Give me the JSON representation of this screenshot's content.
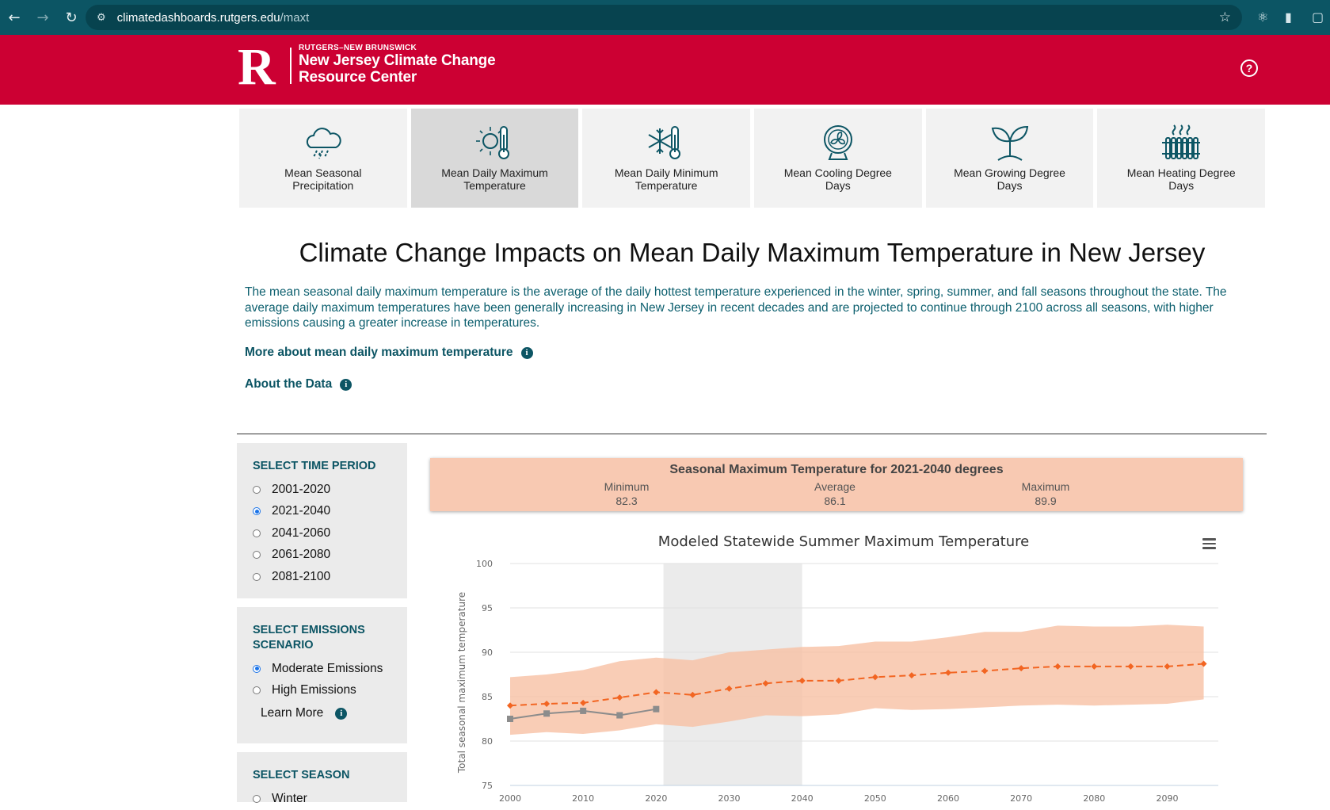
{
  "browser": {
    "url_domain": "climatedashboards.rutgers.edu",
    "url_path": "/maxt",
    "back_icon": "arrow-left-icon",
    "forward_icon": "arrow-right-icon",
    "reload_icon": "reload-icon"
  },
  "header": {
    "org_small": "RUTGERS–NEW BRUNSWICK",
    "org_line1": "New Jersey Climate Change",
    "org_line2": "Resource Center",
    "logo_letter": "R"
  },
  "tiles": [
    {
      "label": "Mean Seasonal Precipitation",
      "icon": "rain-cloud-icon",
      "active": false
    },
    {
      "label": "Mean Daily Maximum Temperature",
      "icon": "sun-thermometer-icon",
      "active": true
    },
    {
      "label": "Mean Daily Minimum Temperature",
      "icon": "snowflake-thermometer-icon",
      "active": false
    },
    {
      "label": "Mean Cooling Degree Days",
      "icon": "fan-icon",
      "active": false
    },
    {
      "label": "Mean Growing Degree Days",
      "icon": "sprout-icon",
      "active": false
    },
    {
      "label": "Mean Heating Degree Days",
      "icon": "radiator-icon",
      "active": false
    }
  ],
  "main": {
    "title": "Climate Change Impacts on Mean Daily Maximum Temperature in New Jersey",
    "intro": "The mean seasonal daily maximum temperature is the average of the daily hottest temperature experienced in the winter, spring, summer, and fall seasons throughout the state. The average daily maximum temperatures have been generally increasing in New Jersey in recent decades and are projected to continue through 2100 across all seasons, with higher emissions causing a greater increase in temperatures.",
    "more_link": "More about mean daily maximum temperature",
    "about_link": "About the Data"
  },
  "sidebar": {
    "time_title": "SELECT TIME PERIOD",
    "time_options": [
      "2001-2020",
      "2021-2040",
      "2041-2060",
      "2061-2080",
      "2081-2100"
    ],
    "time_selected": "2021-2040",
    "emissions_title": "SELECT EMISSIONS SCENARIO",
    "emissions_options": [
      "Moderate Emissions",
      "High Emissions"
    ],
    "emissions_selected": "Moderate Emissions",
    "learn_more": "Learn More",
    "season_title": "SELECT SEASON",
    "season_options": [
      "Winter"
    ]
  },
  "summary": {
    "title": "Seasonal Maximum Temperature for 2021-2040 degrees",
    "min_label": "Minimum",
    "min_value": "82.3",
    "avg_label": "Average",
    "avg_value": "86.1",
    "max_label": "Maximum",
    "max_value": "89.9",
    "color": "#f8c9b2"
  },
  "chart_data": {
    "type": "line",
    "title": "Modeled Statewide Summer Maximum Temperature",
    "ylabel": "Total seasonal maximum temperature",
    "xlabel": "",
    "xlim": [
      2000,
      2097
    ],
    "ylim": [
      75,
      100
    ],
    "yticks": [
      75,
      80,
      85,
      90,
      95,
      100
    ],
    "xticks": [
      2000,
      2010,
      2020,
      2030,
      2040,
      2050,
      2060,
      2070,
      2080,
      2090
    ],
    "highlight_range": [
      2021,
      2040
    ],
    "series": [
      {
        "kind": "observed",
        "color": "#8c8c8c",
        "marker": "square",
        "x": [
          2000,
          2005,
          2010,
          2015,
          2020
        ],
        "y": [
          82.5,
          83.1,
          83.4,
          82.9,
          83.6
        ]
      },
      {
        "kind": "modeled",
        "color": "#f26522",
        "marker": "diamond",
        "dashed": true,
        "x": [
          2000,
          2005,
          2010,
          2015,
          2020,
          2025,
          2030,
          2035,
          2040,
          2045,
          2050,
          2055,
          2060,
          2065,
          2070,
          2075,
          2080,
          2085,
          2090,
          2095
        ],
        "y": [
          84.0,
          84.2,
          84.3,
          84.9,
          85.5,
          85.2,
          85.9,
          86.5,
          86.8,
          86.8,
          87.2,
          87.4,
          87.7,
          87.9,
          88.2,
          88.4,
          88.4,
          88.4,
          88.4,
          88.7
        ]
      },
      {
        "kind": "range",
        "color": "#f8c0a4",
        "x": [
          2000,
          2005,
          2010,
          2015,
          2020,
          2025,
          2030,
          2035,
          2040,
          2045,
          2050,
          2055,
          2060,
          2065,
          2070,
          2075,
          2080,
          2085,
          2090,
          2095
        ],
        "low": [
          80.7,
          81.0,
          80.8,
          81.2,
          81.9,
          81.6,
          82.2,
          82.9,
          82.8,
          83.0,
          83.7,
          83.5,
          83.6,
          83.8,
          84.0,
          84.1,
          84.0,
          84.1,
          84.2,
          84.7
        ],
        "high": [
          87.2,
          87.5,
          88.0,
          89.0,
          89.4,
          89.1,
          90.0,
          90.3,
          90.6,
          90.7,
          91.2,
          91.2,
          91.7,
          92.3,
          92.3,
          93.0,
          92.9,
          92.9,
          93.1,
          92.9
        ]
      }
    ]
  }
}
